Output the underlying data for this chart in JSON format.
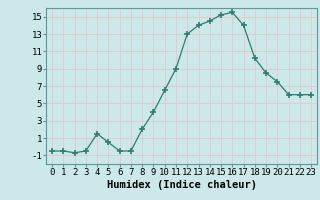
{
  "x": [
    0,
    1,
    2,
    3,
    4,
    5,
    6,
    7,
    8,
    9,
    10,
    11,
    12,
    13,
    14,
    15,
    16,
    17,
    18,
    19,
    20,
    21,
    22,
    23
  ],
  "y": [
    -0.5,
    -0.5,
    -0.7,
    -0.5,
    1.5,
    0.5,
    -0.5,
    -0.5,
    2.0,
    4.0,
    6.5,
    9.0,
    13.0,
    14.0,
    14.5,
    15.2,
    15.5,
    14.0,
    10.2,
    8.5,
    7.5,
    6.0,
    6.0,
    6.0
  ],
  "line_color": "#2e7d6e",
  "marker": "+",
  "marker_size": 4,
  "marker_lw": 1.2,
  "bg_color": "#cce8e8",
  "grid_color": "#b8d8d8",
  "grid_color2": "#e8c8c8",
  "xlabel": "Humidex (Indice chaleur)",
  "xlim": [
    -0.5,
    23.5
  ],
  "ylim": [
    -2,
    16
  ],
  "yticks": [
    -1,
    1,
    3,
    5,
    7,
    9,
    11,
    13,
    15
  ],
  "xtick_labels": [
    "0",
    "1",
    "2",
    "3",
    "4",
    "5",
    "6",
    "7",
    "8",
    "9",
    "10",
    "11",
    "12",
    "13",
    "14",
    "15",
    "16",
    "17",
    "18",
    "19",
    "20",
    "21",
    "22",
    "23"
  ],
  "tick_fontsize": 6.5,
  "xlabel_fontsize": 7.5
}
